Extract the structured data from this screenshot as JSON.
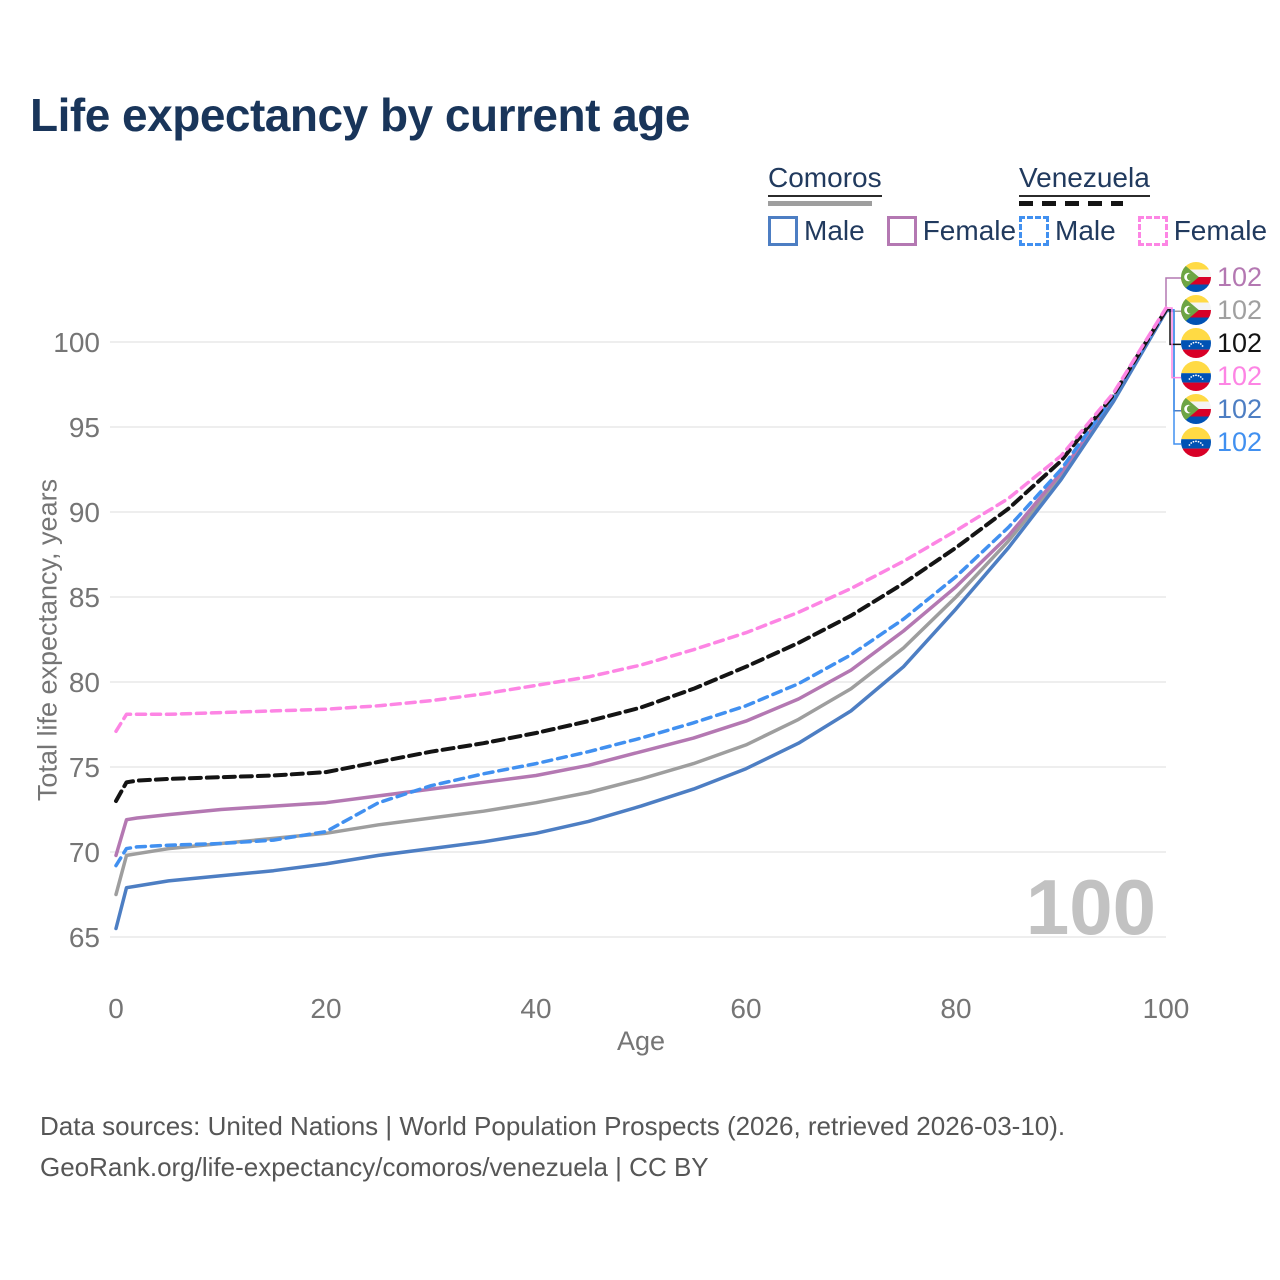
{
  "title": "Life expectancy by current age",
  "watermark": "100",
  "legend": {
    "groups": [
      {
        "country": "Comoros",
        "items": [
          {
            "label": "Male"
          },
          {
            "label": "Female"
          }
        ]
      },
      {
        "country": "Venezuela",
        "items": [
          {
            "label": "Male"
          },
          {
            "label": "Female"
          }
        ]
      }
    ]
  },
  "footer": {
    "line1": "Data sources: United Nations | World Population Prospects (2026, retrieved 2026-03-10).",
    "line2": "GeoRank.org/life-expectancy/comoros/venezuela | CC BY"
  },
  "colors": {
    "title_text": "#19355a",
    "legend_text": "#213a5e",
    "axis_text": "#757575",
    "gridline": "#e9e9e9",
    "watermark": "#c2c2c2",
    "footer_text": "#565656"
  },
  "chart_data": {
    "type": "line",
    "title": "Life expectancy by current age",
    "xlabel": "Age",
    "ylabel": "Total life expectancy, years",
    "xlim": [
      0,
      100
    ],
    "ylim": [
      65,
      102
    ],
    "xticks": [
      0,
      20,
      40,
      60,
      80,
      100
    ],
    "yticks": [
      65,
      70,
      75,
      80,
      85,
      90,
      95,
      100
    ],
    "grid": "horizontal",
    "legend_position": "top-right",
    "ages": [
      0,
      1,
      2,
      5,
      10,
      15,
      20,
      25,
      30,
      35,
      40,
      45,
      50,
      55,
      60,
      65,
      70,
      75,
      80,
      85,
      90,
      95,
      100
    ],
    "series": [
      {
        "id": "comoros-all",
        "name": "Comoros — All",
        "country": "comoros",
        "sex": "all",
        "color": "#9e9e9e",
        "label_color": "#a0a0a0",
        "dash": "",
        "flag": "comoros",
        "end_label": "102",
        "label_row": 1,
        "values": [
          67.5,
          69.8,
          69.9,
          70.2,
          70.5,
          70.8,
          71.1,
          71.6,
          72.0,
          72.4,
          72.9,
          73.5,
          74.3,
          75.2,
          76.3,
          77.8,
          79.6,
          82.0,
          85.0,
          88.3,
          92.1,
          96.6,
          101.8
        ]
      },
      {
        "id": "comoros-female",
        "name": "Comoros — Female",
        "country": "comoros",
        "sex": "female",
        "color": "#b478b2",
        "label_color": "#b478b2",
        "dash": "",
        "flag": "comoros",
        "end_label": "102",
        "label_row": 0,
        "values": [
          69.8,
          71.9,
          72.0,
          72.2,
          72.5,
          72.7,
          72.9,
          73.3,
          73.7,
          74.1,
          74.5,
          75.1,
          75.9,
          76.7,
          77.7,
          79.0,
          80.7,
          83.0,
          85.6,
          88.6,
          92.3,
          96.7,
          101.8
        ]
      },
      {
        "id": "comoros-male",
        "name": "Comoros — Male",
        "country": "comoros",
        "sex": "male",
        "color": "#4d7ec3",
        "label_color": "#4d7ec3",
        "dash": "",
        "flag": "comoros",
        "end_label": "102",
        "label_row": 4,
        "values": [
          65.5,
          67.9,
          68.0,
          68.3,
          68.6,
          68.9,
          69.3,
          69.8,
          70.2,
          70.6,
          71.1,
          71.8,
          72.7,
          73.7,
          74.9,
          76.4,
          78.3,
          80.9,
          84.3,
          87.9,
          91.9,
          96.5,
          101.8
        ]
      },
      {
        "id": "venezuela-male",
        "name": "Venezuela — Male",
        "country": "venezuela",
        "sex": "male",
        "color": "#4190f0",
        "label_color": "#4190f0",
        "dash": "9 6",
        "flag": "venezuela",
        "end_label": "102",
        "label_row": 5,
        "values": [
          69.2,
          70.2,
          70.3,
          70.4,
          70.5,
          70.7,
          71.2,
          72.9,
          73.9,
          74.6,
          75.2,
          75.9,
          76.7,
          77.6,
          78.6,
          79.9,
          81.6,
          83.7,
          86.2,
          89.1,
          92.5,
          96.8,
          101.9
        ]
      },
      {
        "id": "venezuela-all",
        "name": "Venezuela — All",
        "country": "venezuela",
        "sex": "all",
        "color": "#141414",
        "label_color": "#141414",
        "dash": "11 6",
        "flag": "venezuela",
        "end_label": "102",
        "label_row": 2,
        "values": [
          73.0,
          74.1,
          74.2,
          74.3,
          74.4,
          74.5,
          74.7,
          75.3,
          75.9,
          76.4,
          77.0,
          77.7,
          78.5,
          79.6,
          80.9,
          82.3,
          83.9,
          85.8,
          87.9,
          90.2,
          93.0,
          96.9,
          101.9
        ]
      },
      {
        "id": "venezuela-female",
        "name": "Venezuela — Female",
        "country": "venezuela",
        "sex": "female",
        "color": "#fd85e4",
        "label_color": "#fd85e4",
        "dash": "9 6",
        "flag": "venezuela",
        "end_label": "102",
        "label_row": 3,
        "values": [
          77.1,
          78.1,
          78.1,
          78.1,
          78.2,
          78.3,
          78.4,
          78.6,
          78.9,
          79.3,
          79.8,
          80.3,
          81.0,
          81.9,
          82.9,
          84.1,
          85.5,
          87.1,
          88.9,
          90.8,
          93.3,
          97.0,
          102.0
        ]
      }
    ]
  }
}
